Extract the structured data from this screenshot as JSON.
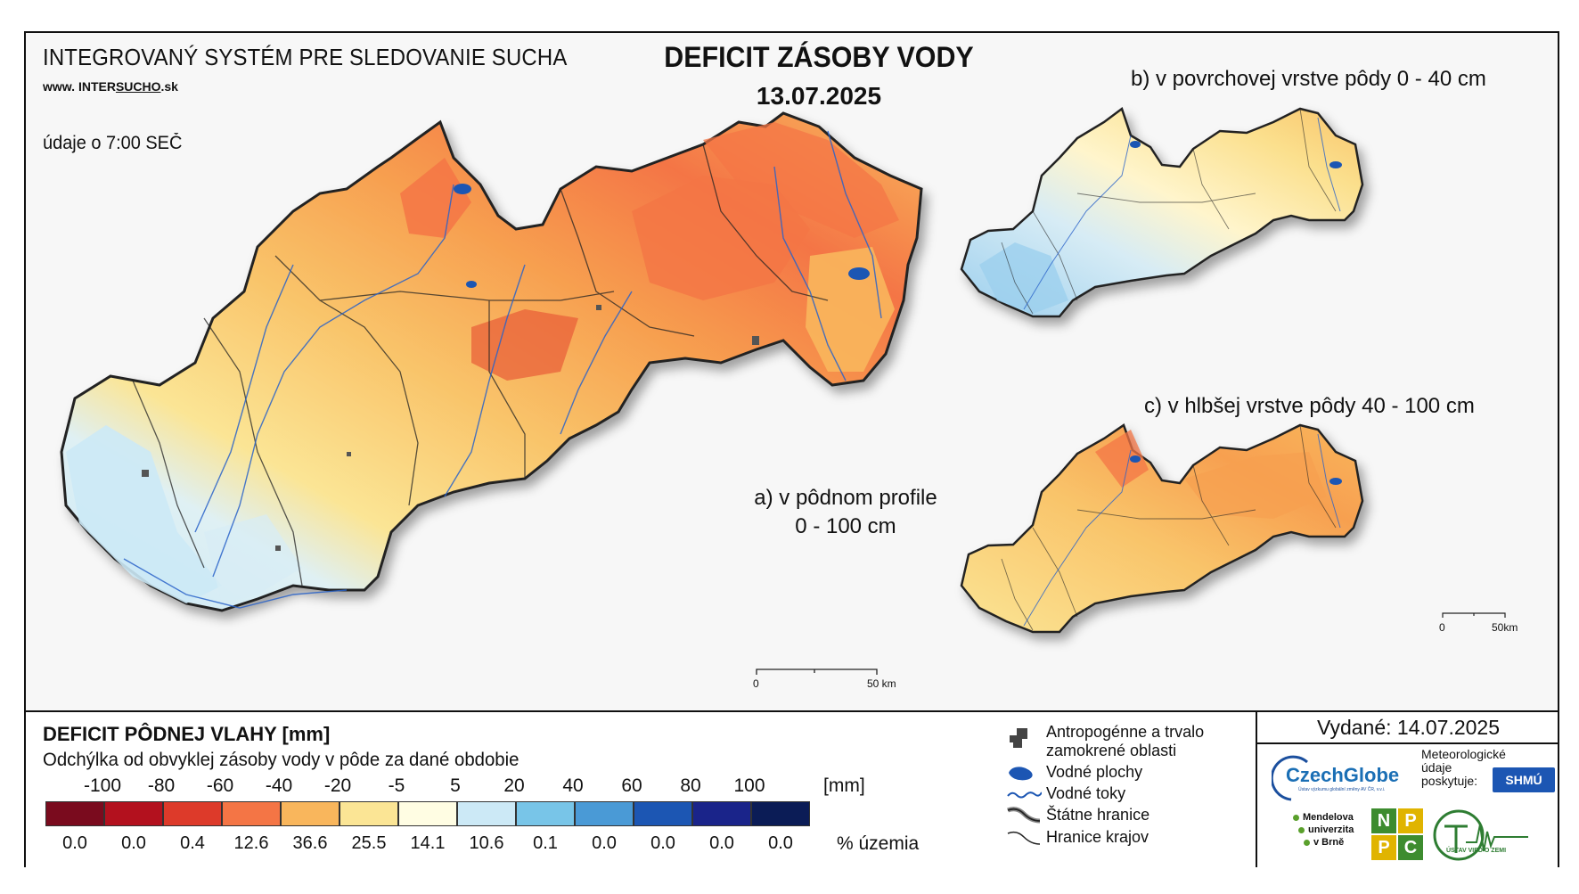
{
  "header": {
    "system_title": "INTEGROVANÝ SYSTÉM PRE SLEDOVANIE SUCHA",
    "website_prefix": "www. ",
    "website_inter": "INTER",
    "website_sucho": "SUCHO",
    "website_suffix": ".sk",
    "time_note": "údaje o 7:00 SEČ",
    "title": "DEFICIT ZÁSOBY VODY",
    "date": "13.07.2025"
  },
  "panels": {
    "a_line1": "a) v pôdnom profile",
    "a_line2": "0 - 100 cm",
    "b": "b) v povrchovej vrstve pôdy 0 - 40 cm",
    "c": "c) v hlbšej vrstve pôdy 40 - 100 cm"
  },
  "scalebars": {
    "main": {
      "start": "0",
      "end": "50 km"
    },
    "small": {
      "start": "0",
      "end": "50km"
    }
  },
  "legend": {
    "title": "DEFICIT PÔDNEJ VLAHY [mm]",
    "subtitle": "Odchýlka od obvyklej zásoby vody v pôde za dané obdobie",
    "class_labels": [
      "-100",
      "-80",
      "-60",
      "-40",
      "-20",
      "-5",
      "5",
      "20",
      "40",
      "60",
      "80",
      "100"
    ],
    "unit": "[mm]",
    "colors": [
      "#7a0b1e",
      "#b3111e",
      "#dd3a2a",
      "#f47545",
      "#f9b65c",
      "#fbe595",
      "#fffde3",
      "#cce9f6",
      "#78c5e8",
      "#4a9ad6",
      "#1c56b3",
      "#1a248a",
      "#0b1c56"
    ],
    "percent_values": [
      "0.0",
      "0.0",
      "0.4",
      "12.6",
      "36.6",
      "25.5",
      "14.1",
      "10.6",
      "0.1",
      "0.0",
      "0.0",
      "0.0",
      "0.0"
    ],
    "percent_unit": "% územia"
  },
  "symbols": {
    "urban": "Antropogénne a trvalo zamokrené oblasti",
    "urban_line1": "Antropogénne a trvalo",
    "urban_line2": "zamokrené oblasti",
    "water_bodies": "Vodné plochy",
    "rivers": "Vodné toky",
    "state_border": "Štátne hranice",
    "region_border": "Hranice krajov"
  },
  "issued": {
    "label": "Vydané: 14.07.2025",
    "czechglobe": "CzechGlobe",
    "czechglobe_sub": "Ústav výzkumu globální změny AV ČR, v.v.i.",
    "meteo_line1": "Meteorologické",
    "meteo_line2": "údaje",
    "meteo_line3": "poskytuje:",
    "shmu": "SHMÚ",
    "mendel_line1": "Mendelova",
    "mendel_line2": "univerzita",
    "mendel_line3": "v Brně",
    "nppc": [
      "N",
      "P",
      "P",
      "C"
    ],
    "uvz": "ÚSTAV VIED O ZEMI"
  }
}
